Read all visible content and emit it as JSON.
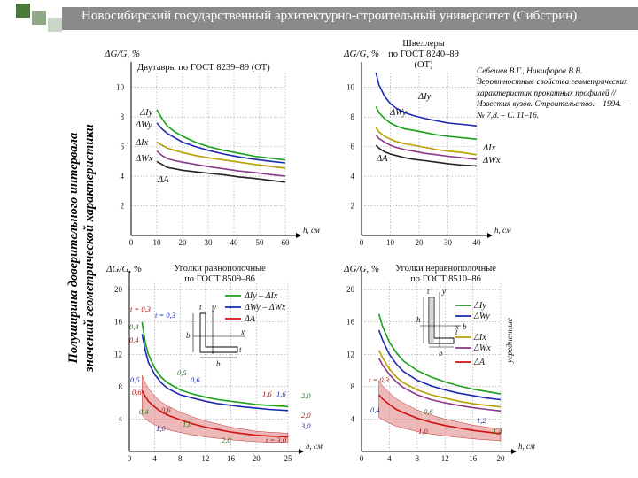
{
  "header": {
    "title": "Новосибирский государственный архитектурно-строительный университет (Сибстрин)",
    "accent_colors": [
      "#4a7a3a",
      "#8fa887",
      "#c9d6c5"
    ]
  },
  "y_axis_label": {
    "line1": "Полуширина доверительного интервала",
    "line2": "значений геометрической характеристики"
  },
  "citation": "Себешев В.Г., Никифоров В.В. Вероятностные свойства геометрических характеристик прокатных профилей // Известия вузов. Строительство. – 1994. – № 7,8. – С. 11–16.",
  "chart_data": [
    {
      "type": "line",
      "panel": "top-left",
      "title": "Двутавры по ГОСТ 8239–89 (ОТ)",
      "ylabel": "ΔG/G, %",
      "xlabel": "h, см",
      "x_ticks": [
        "0",
        "10",
        "20",
        "30",
        "40",
        "50",
        "60"
      ],
      "y_ticks": [
        "2",
        "4",
        "6",
        "8",
        "10"
      ],
      "xlim": [
        0,
        60
      ],
      "ylim": [
        0,
        11
      ],
      "annotations": [
        "ΔIy",
        "ΔWy",
        "ΔIx",
        "ΔWx",
        "ΔA"
      ],
      "series": [
        {
          "label": "ΔIy",
          "color": "#1aa01a",
          "x": [
            10,
            12,
            14,
            17,
            20,
            25,
            30,
            36,
            42,
            48,
            55,
            60
          ],
          "y": [
            8.5,
            7.9,
            7.4,
            7.0,
            6.7,
            6.3,
            6.0,
            5.75,
            5.55,
            5.35,
            5.2,
            5.1
          ]
        },
        {
          "label": "ΔWy",
          "color": "#1a2ab0",
          "x": [
            10,
            12,
            14,
            17,
            20,
            25,
            30,
            36,
            42,
            48,
            55,
            60
          ],
          "y": [
            7.6,
            7.2,
            6.9,
            6.6,
            6.3,
            6.0,
            5.75,
            5.5,
            5.3,
            5.15,
            5.0,
            4.9
          ]
        },
        {
          "label": "ΔIx",
          "color": "#b8a000",
          "x": [
            10,
            12,
            14,
            17,
            20,
            25,
            30,
            36,
            42,
            48,
            55,
            60
          ],
          "y": [
            6.3,
            6.1,
            5.9,
            5.75,
            5.6,
            5.4,
            5.25,
            5.1,
            4.95,
            4.8,
            4.65,
            4.55
          ]
        },
        {
          "label": "ΔWx",
          "color": "#8a3a8a",
          "x": [
            10,
            12,
            14,
            17,
            20,
            25,
            30,
            36,
            42,
            48,
            55,
            60
          ],
          "y": [
            5.7,
            5.4,
            5.2,
            5.05,
            4.95,
            4.8,
            4.65,
            4.5,
            4.35,
            4.25,
            4.1,
            4.0
          ]
        },
        {
          "label": "ΔA",
          "color": "#222222",
          "x": [
            10,
            12,
            14,
            17,
            20,
            25,
            30,
            36,
            42,
            48,
            55,
            60
          ],
          "y": [
            5.0,
            4.8,
            4.6,
            4.5,
            4.4,
            4.3,
            4.2,
            4.1,
            3.95,
            3.85,
            3.7,
            3.6
          ]
        }
      ]
    },
    {
      "type": "line",
      "panel": "top-right",
      "title": "Швеллеры по ГОСТ 8240–89 (ОТ)",
      "ylabel": "ΔG/G, %",
      "xlabel": "h, см",
      "x_ticks": [
        "0",
        "10",
        "20",
        "30",
        "40"
      ],
      "y_ticks": [
        "2",
        "4",
        "6",
        "8",
        "10"
      ],
      "xlim": [
        0,
        40
      ],
      "ylim": [
        0,
        11
      ],
      "annotations": [
        "ΔIy",
        "ΔWy",
        "ΔA",
        "ΔIx",
        "ΔWx"
      ],
      "series": [
        {
          "label": "ΔIy",
          "color": "#1a2ab0",
          "x": [
            5,
            6,
            8,
            10,
            12,
            15,
            18,
            22,
            26,
            30,
            35,
            40
          ],
          "y": [
            11.0,
            10.2,
            9.4,
            8.9,
            8.6,
            8.3,
            8.1,
            7.9,
            7.75,
            7.6,
            7.5,
            7.4
          ]
        },
        {
          "label": "ΔWy",
          "color": "#1aa01a",
          "x": [
            5,
            6,
            8,
            10,
            12,
            15,
            18,
            22,
            26,
            30,
            35,
            40
          ],
          "y": [
            8.7,
            8.3,
            7.9,
            7.6,
            7.4,
            7.2,
            7.1,
            6.95,
            6.8,
            6.7,
            6.6,
            6.5
          ]
        },
        {
          "label": "ΔIx",
          "color": "#b8a000",
          "x": [
            5,
            6,
            8,
            10,
            12,
            15,
            18,
            22,
            26,
            30,
            35,
            40
          ],
          "y": [
            7.3,
            7.0,
            6.7,
            6.5,
            6.35,
            6.2,
            6.1,
            5.95,
            5.8,
            5.7,
            5.6,
            5.45
          ]
        },
        {
          "label": "ΔWx",
          "color": "#8a3a8a",
          "x": [
            5,
            6,
            8,
            10,
            12,
            15,
            18,
            22,
            26,
            30,
            35,
            40
          ],
          "y": [
            6.8,
            6.55,
            6.3,
            6.1,
            5.95,
            5.8,
            5.7,
            5.55,
            5.45,
            5.35,
            5.25,
            5.15
          ]
        },
        {
          "label": "ΔA",
          "color": "#222222",
          "x": [
            5,
            6,
            8,
            10,
            12,
            15,
            18,
            22,
            26,
            30,
            35,
            40
          ],
          "y": [
            6.1,
            5.9,
            5.65,
            5.5,
            5.4,
            5.25,
            5.15,
            5.05,
            4.95,
            4.85,
            4.75,
            4.7
          ]
        }
      ]
    },
    {
      "type": "line",
      "panel": "bottom-left",
      "title": "Уголки равнополочные по ГОСТ 8509–86",
      "ylabel": "ΔG/G, %",
      "xlabel": "b, см",
      "x_ticks": [
        "0",
        "4",
        "8",
        "12",
        "16",
        "20",
        "25"
      ],
      "y_ticks": [
        "4",
        "8",
        "12",
        "16",
        "20"
      ],
      "xlim": [
        0,
        25
      ],
      "ylim": [
        0,
        21
      ],
      "legend": [
        "ΔIy – ΔIx",
        "ΔWy – ΔWx",
        "ΔA"
      ],
      "thickness_labels": [
        "t = 0,3",
        "t = 0,3",
        "0,4",
        "0,4",
        "0,5",
        "0,5",
        "0,6",
        "0,6",
        "0,4",
        "0,6",
        "1,0",
        "1,0",
        "1,6",
        "1,6",
        "2,0",
        "2,0",
        "3,0",
        "2,0",
        "t = 3,0"
      ],
      "section_labels": [
        "t",
        "y",
        "x",
        "b",
        "b",
        "t"
      ],
      "series": [
        {
          "label": "ΔIy – ΔIx",
          "color": "#1aa01a",
          "x": [
            2,
            2.5,
            3,
            4,
            5,
            6,
            8,
            10,
            12,
            14,
            16,
            18,
            20,
            22,
            25
          ],
          "y": [
            16.0,
            13.5,
            12.0,
            10.3,
            9.2,
            8.5,
            7.6,
            7.1,
            6.7,
            6.4,
            6.2,
            6.0,
            5.8,
            5.7,
            5.55
          ]
        },
        {
          "label": "ΔWy – ΔWx",
          "color": "#1a2ab0",
          "x": [
            2,
            2.5,
            3,
            4,
            5,
            6,
            8,
            10,
            12,
            14,
            16,
            18,
            20,
            22,
            25
          ],
          "y": [
            14.5,
            12.5,
            11.0,
            9.5,
            8.5,
            7.8,
            7.0,
            6.6,
            6.2,
            5.9,
            5.7,
            5.5,
            5.35,
            5.2,
            5.05
          ]
        },
        {
          "label": "ΔA",
          "color": "#d01010",
          "x": [
            2,
            2.5,
            3,
            4,
            5,
            6,
            8,
            10,
            12,
            14,
            16,
            18,
            20,
            22,
            25
          ],
          "y": [
            7.5,
            6.8,
            6.2,
            5.5,
            4.9,
            4.5,
            3.9,
            3.4,
            3.0,
            2.7,
            2.4,
            2.2,
            2.0,
            1.9,
            1.8
          ]
        }
      ]
    },
    {
      "type": "line",
      "panel": "bottom-right",
      "title": "Уголки неравнополочные по ГОСТ 8510–86",
      "ylabel": "ΔG/G, %",
      "xlabel": "h, см",
      "x_ticks": [
        "0",
        "4",
        "8",
        "12",
        "16",
        "20"
      ],
      "y_ticks": [
        "4",
        "8",
        "12",
        "16",
        "20"
      ],
      "xlim": [
        0,
        20
      ],
      "ylim": [
        0,
        21
      ],
      "legend": [
        "ΔIy",
        "ΔWy",
        "ΔIx",
        "ΔWx",
        "ΔA"
      ],
      "legend_side_label": "усредненные",
      "thickness_labels": [
        "t = 0,3",
        "0,4",
        "0,6",
        "1,0",
        "1,2",
        "1,4"
      ],
      "section_labels": [
        "t",
        "y",
        "x",
        "h",
        "b",
        "t",
        "b"
      ],
      "series": [
        {
          "label": "ΔIy",
          "color": "#1aa01a",
          "x": [
            2.5,
            3,
            4,
            5,
            6,
            8,
            10,
            12,
            14,
            16,
            18,
            20
          ],
          "y": [
            17.0,
            15.5,
            13.5,
            12.2,
            11.2,
            10.0,
            9.2,
            8.6,
            8.1,
            7.7,
            7.4,
            7.1
          ]
        },
        {
          "label": "ΔWy",
          "color": "#1a2ab0",
          "x": [
            2.5,
            3,
            4,
            5,
            6,
            8,
            10,
            12,
            14,
            16,
            18,
            20
          ],
          "y": [
            15.0,
            13.8,
            12.0,
            10.8,
            9.9,
            8.8,
            8.1,
            7.6,
            7.2,
            6.9,
            6.6,
            6.4
          ]
        },
        {
          "label": "ΔIx",
          "color": "#b8a000",
          "x": [
            2.5,
            3,
            4,
            5,
            6,
            8,
            10,
            12,
            14,
            16,
            18,
            20
          ],
          "y": [
            12.5,
            11.6,
            10.2,
            9.2,
            8.5,
            7.6,
            7.0,
            6.6,
            6.2,
            5.9,
            5.7,
            5.5
          ]
        },
        {
          "label": "ΔWx",
          "color": "#8a3a8a",
          "x": [
            2.5,
            3,
            4,
            5,
            6,
            8,
            10,
            12,
            14,
            16,
            18,
            20
          ],
          "y": [
            11.5,
            10.7,
            9.5,
            8.6,
            7.9,
            7.0,
            6.4,
            6.0,
            5.7,
            5.4,
            5.2,
            5.0
          ]
        },
        {
          "label": "ΔA",
          "color": "#d01010",
          "x": [
            2.5,
            3,
            4,
            5,
            6,
            8,
            10,
            12,
            14,
            16,
            18,
            20
          ],
          "y": [
            7.0,
            6.5,
            5.8,
            5.2,
            4.8,
            4.1,
            3.6,
            3.2,
            2.9,
            2.6,
            2.4,
            2.2
          ]
        }
      ]
    }
  ]
}
